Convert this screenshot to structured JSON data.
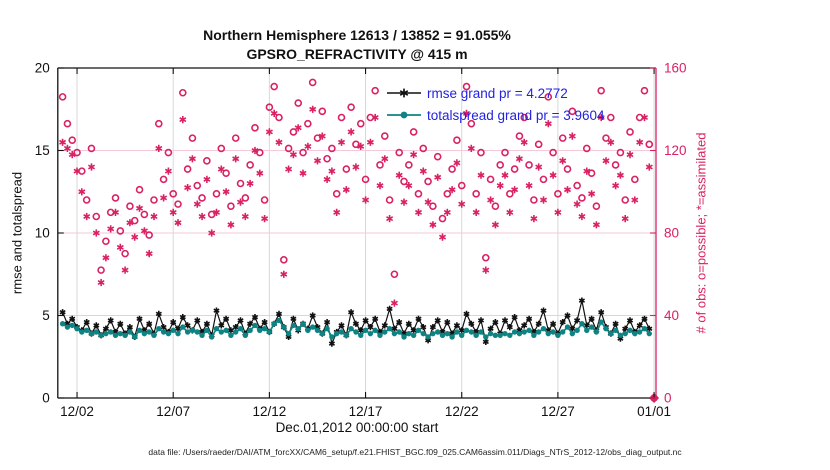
{
  "title": {
    "line1": "Northern Hemisphere 12613 / 13852 = 91.055%",
    "line2": "GPSRO_REFRACTIVITY @ 415 m"
  },
  "legend": [
    {
      "label": "rmse grand pr = 4.2772",
      "series": "rmse"
    },
    {
      "label": "totalspread grand pr = 3.9604",
      "series": "totalspread"
    }
  ],
  "axes": {
    "left": {
      "label": "rmse and totalspread",
      "ticks": [
        0,
        5,
        10,
        15,
        20
      ],
      "range": [
        0,
        20
      ]
    },
    "right": {
      "label": "# of obs: o=possible; *=assimilated",
      "ticks": [
        0,
        40,
        80,
        120,
        160
      ],
      "range": [
        0,
        160
      ]
    },
    "x": {
      "label": "Dec.01,2012 00:00:00 start",
      "range_days": [
        0,
        31.1
      ],
      "ticks": [
        {
          "label": "12/02",
          "day": 1
        },
        {
          "label": "12/07",
          "day": 6
        },
        {
          "label": "12/12",
          "day": 11
        },
        {
          "label": "12/17",
          "day": 16
        },
        {
          "label": "12/22",
          "day": 21
        },
        {
          "label": "12/27",
          "day": 26
        },
        {
          "label": "01/01",
          "day": 31
        }
      ]
    }
  },
  "footer": {
    "text": "data file: /Users/raeder/DAI/ATM_forcXX/CAM6_setup/f.e21.FHIST_BGC.f09_025.CAM6assim.011/Diags_NTrS_2012-12/obs_diag_output.nc"
  },
  "colors": {
    "crimson": "#da2163",
    "teal": "#0e8383",
    "black": "#111111",
    "legend_blue": "#2222e0",
    "grid_gray": "#d8d8d8",
    "grid_pink": "#f6c9d9"
  },
  "chart_data": {
    "type": "line",
    "title": "Northern Hemisphere 12613 / 13852 = 91.055% — GPSRO_REFRACTIVITY @ 415 m",
    "xlabel": "Dec.01,2012 00:00:00 start",
    "x_start": "2012-12-01 00:00",
    "bin_interval_days": 0.25,
    "first_bin_day": 0.25,
    "possible_total": 13852,
    "assimilated_total": 12613,
    "assimilated_percent": 91.055,
    "rmse_grand_pr": 4.2772,
    "totalspread_grand_pr": 3.9604,
    "left_ylim": [
      0,
      20
    ],
    "right_ylim": [
      0,
      160
    ],
    "series": [
      {
        "name": "possible",
        "axis": "right",
        "marker": "circle",
        "line": false,
        "color": "crimson",
        "values": [
          146,
          133,
          125,
          119,
          110,
          96,
          121,
          88,
          62,
          76,
          90,
          97,
          81,
          70,
          93,
          86,
          101,
          89,
          79,
          96,
          133,
          106,
          119,
          99,
          94,
          148,
          111,
          126,
          103,
          97,
          115,
          89,
          99,
          121,
          109,
          93,
          126,
          104,
          97,
          113,
          131,
          119,
          96,
          141,
          151,
          136,
          67,
          121,
          129,
          143,
          119,
          133,
          153,
          126,
          139,
          116,
          121,
          99,
          136,
          111,
          141,
          123,
          133,
          106,
          136,
          149,
          113,
          127,
          96,
          60,
          119,
          105,
          113,
          129,
          99,
          121,
          105,
          93,
          117,
          87,
          99,
          111,
          125,
          103,
          151,
          133,
          99,
          119,
          68,
          106,
          93,
          113,
          119,
          99,
          111,
          127,
          136,
          113,
          96,
          123,
          106,
          146,
          119,
          99,
          126,
          111,
          139,
          103,
          97,
          121,
          109,
          93,
          149,
          126,
          136,
          113,
          119,
          96,
          129,
          106,
          136,
          149,
          123,
          0
        ]
      },
      {
        "name": "assimilated",
        "axis": "right",
        "marker": "asterisk",
        "line": false,
        "color": "crimson",
        "values": [
          124,
          121,
          118,
          110,
          100,
          88,
          112,
          80,
          56,
          68,
          82,
          90,
          73,
          62,
          85,
          78,
          92,
          81,
          70,
          88,
          121,
          97,
          110,
          90,
          85,
          135,
          102,
          116,
          94,
          88,
          106,
          80,
          90,
          111,
          100,
          84,
          116,
          95,
          88,
          104,
          120,
          109,
          87,
          129,
          138,
          124,
          60,
          111,
          118,
          131,
          109,
          122,
          140,
          115,
          127,
          106,
          110,
          90,
          124,
          101,
          129,
          112,
          122,
          96,
          124,
          136,
          103,
          116,
          87,
          46,
          108,
          95,
          103,
          118,
          90,
          110,
          95,
          84,
          107,
          78,
          90,
          101,
          114,
          94,
          138,
          121,
          90,
          108,
          62,
          96,
          84,
          103,
          108,
          90,
          101,
          116,
          124,
          103,
          87,
          112,
          96,
          133,
          108,
          90,
          115,
          101,
          127,
          94,
          88,
          110,
          99,
          84,
          136,
          115,
          124,
          103,
          108,
          87,
          118,
          96,
          124,
          136,
          112,
          0
        ]
      },
      {
        "name": "rmse",
        "axis": "left",
        "marker": "asterisk",
        "line": true,
        "color": "black",
        "values": [
          5.2,
          4.5,
          4.8,
          4.3,
          4.1,
          4.6,
          3.9,
          4.4,
          3.8,
          4.2,
          4.7,
          4.0,
          4.5,
          3.9,
          4.3,
          3.7,
          4.8,
          4.1,
          4.5,
          3.9,
          5.1,
          4.3,
          4.0,
          4.6,
          4.2,
          4.9,
          4.4,
          4.1,
          4.7,
          4.0,
          4.5,
          3.8,
          5.3,
          4.4,
          4.8,
          4.1,
          4.3,
          4.7,
          3.9,
          4.5,
          4.9,
          4.2,
          4.6,
          4.0,
          4.5,
          5.1,
          4.3,
          3.7,
          4.8,
          4.1,
          4.5,
          4.2,
          5.0,
          4.3,
          3.9,
          4.6,
          3.3,
          4.0,
          4.4,
          3.8,
          5.2,
          4.5,
          4.1,
          4.7,
          4.3,
          4.8,
          4.0,
          4.4,
          5.4,
          4.2,
          4.6,
          3.9,
          4.5,
          4.1,
          4.8,
          4.3,
          3.5,
          4.3,
          4.7,
          4.0,
          4.6,
          3.9,
          4.4,
          4.1,
          5.1,
          4.5,
          4.0,
          4.7,
          3.4,
          4.2,
          4.6,
          3.9,
          4.7,
          4.3,
          4.9,
          4.1,
          4.4,
          4.8,
          4.0,
          4.5,
          5.3,
          4.1,
          4.5,
          3.9,
          4.6,
          5.0,
          4.2,
          4.7,
          5.9,
          4.4,
          4.8,
          4.1,
          5.2,
          4.3,
          3.9,
          4.5,
          3.6,
          4.2,
          4.7,
          4.0,
          4.4,
          4.8,
          4.2,
          null
        ]
      },
      {
        "name": "totalspread",
        "axis": "left",
        "marker": "dot",
        "line": true,
        "color": "teal",
        "values": [
          4.5,
          4.3,
          4.4,
          4.2,
          4.0,
          4.1,
          3.9,
          4.0,
          3.8,
          3.9,
          4.0,
          3.8,
          3.9,
          3.8,
          4.0,
          3.7,
          4.1,
          3.9,
          4.0,
          3.8,
          4.2,
          4.0,
          3.9,
          4.1,
          3.9,
          4.3,
          4.0,
          4.1,
          4.0,
          3.8,
          4.1,
          3.7,
          4.2,
          4.0,
          4.1,
          3.8,
          4.0,
          4.2,
          3.8,
          4.1,
          4.4,
          4.1,
          4.2,
          4.0,
          4.5,
          4.7,
          4.3,
          3.9,
          4.4,
          4.2,
          4.5,
          4.1,
          4.3,
          4.1,
          3.9,
          4.2,
          3.7,
          3.9,
          4.0,
          3.8,
          4.2,
          4.0,
          3.8,
          4.1,
          3.9,
          4.1,
          3.8,
          4.0,
          4.2,
          3.9,
          4.0,
          3.7,
          3.9,
          3.8,
          4.1,
          3.9,
          3.7,
          3.9,
          4.0,
          3.8,
          3.9,
          3.7,
          4.0,
          3.8,
          4.1,
          4.0,
          3.8,
          4.0,
          3.7,
          3.9,
          3.8,
          3.8,
          3.9,
          3.8,
          4.0,
          3.9,
          4.0,
          4.1,
          3.8,
          4.0,
          4.2,
          3.9,
          4.0,
          3.8,
          4.0,
          4.3,
          3.9,
          4.1,
          4.5,
          4.1,
          4.3,
          4.0,
          4.6,
          4.2,
          3.9,
          4.1,
          3.8,
          3.9,
          4.1,
          3.9,
          4.0,
          4.2,
          3.9,
          null
        ]
      }
    ],
    "final_marker": {
      "day": 31,
      "value": 0,
      "axis": "right",
      "shape": "diamond"
    },
    "grid": {
      "vertical": "x-ticks",
      "horizontal_right_ticks": [
        40,
        80,
        120
      ]
    },
    "legend_position": "upper-right-inside"
  }
}
